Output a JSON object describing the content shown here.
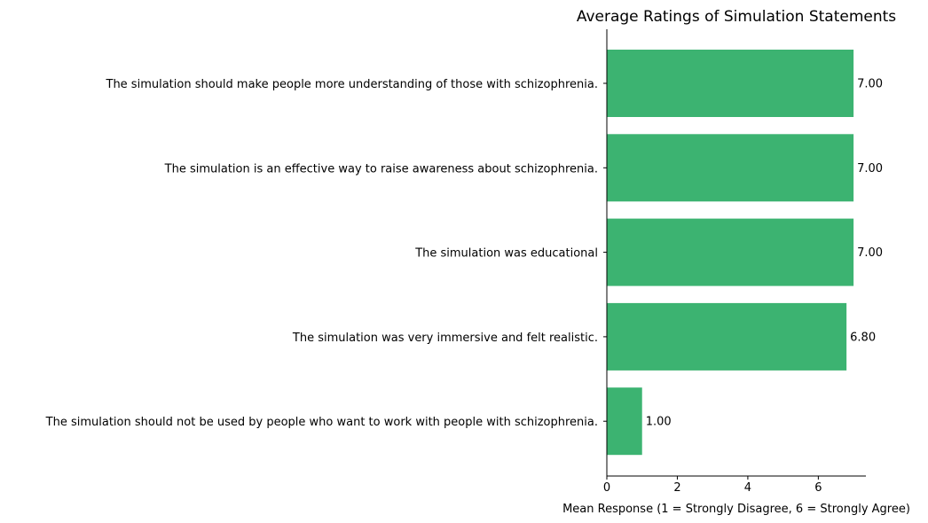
{
  "chart_data": {
    "type": "bar",
    "orientation": "horizontal",
    "title": "Average Ratings of Simulation Statements",
    "xlabel": "Mean Response (1 = Strongly Disagree, 6 = Strongly Agree)",
    "ylabel": "",
    "xlim": [
      0,
      7.35
    ],
    "xticks": [
      0,
      2,
      4,
      6
    ],
    "grid": false,
    "bar_color": "#3cb371",
    "categories": [
      "The simulation should make people more understanding of those with schizophrenia.",
      "The simulation is an effective way to raise awareness about schizophrenia.",
      "The simulation was educational",
      "The simulation was very immersive and felt realistic.",
      "The simulation should not be used by people who want to work with people with schizophrenia."
    ],
    "values": [
      7.0,
      7.0,
      7.0,
      6.8,
      1.0
    ],
    "value_labels": [
      "7.00",
      "7.00",
      "7.00",
      "6.80",
      "1.00"
    ]
  }
}
